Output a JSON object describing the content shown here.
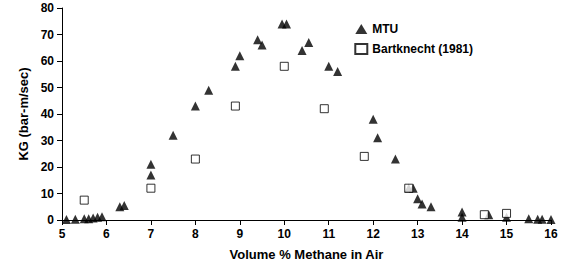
{
  "chart_data": {
    "type": "scatter",
    "x_label": "Volume % Methane in Air",
    "y_label": "KG (bar-m/sec)",
    "xlim": [
      5,
      16
    ],
    "xticks": [
      5,
      6,
      7,
      8,
      9,
      10,
      11,
      12,
      13,
      14,
      15,
      16
    ],
    "ylim": [
      0,
      80
    ],
    "yticks": [
      0,
      10,
      20,
      30,
      40,
      50,
      60,
      70,
      80
    ],
    "grid": false,
    "legend": "right",
    "series": [
      {
        "name": "MTU",
        "color": "#000000",
        "marker": "triangle",
        "x": [
          5.1,
          5.3,
          5.5,
          5.6,
          5.7,
          5.8,
          5.9,
          6.3,
          6.4,
          7.0,
          7.0,
          7.5,
          8.0,
          8.3,
          8.9,
          9.0,
          9.4,
          9.5,
          9.95,
          10.05,
          10.4,
          10.55,
          11.0,
          11.2,
          12.0,
          12.1,
          12.5,
          12.8,
          12.9,
          13.0,
          13.1,
          13.3,
          14.0,
          14.0,
          14.6,
          15.0,
          15.5,
          15.7,
          15.8,
          16.0
        ],
        "values": [
          0.2,
          0.3,
          0.5,
          0.5,
          0.8,
          1,
          1.2,
          5,
          5.5,
          17,
          21,
          32,
          43,
          49,
          58,
          62,
          68,
          66,
          74,
          74,
          64,
          67,
          58,
          56,
          38,
          31,
          23,
          12,
          12,
          8,
          6,
          5,
          1,
          3,
          2,
          1,
          0.5,
          0.3,
          0.3,
          0.2
        ]
      },
      {
        "name": "Bartknecht (1981)",
        "color": "#000000",
        "marker": "open_square",
        "x": [
          5.5,
          7.0,
          8.0,
          8.9,
          10.0,
          10.9,
          11.8,
          12.8,
          14.5,
          15.0
        ],
        "values": [
          7.5,
          12,
          23,
          43,
          58,
          42,
          24,
          12,
          2,
          2.5
        ]
      }
    ]
  }
}
